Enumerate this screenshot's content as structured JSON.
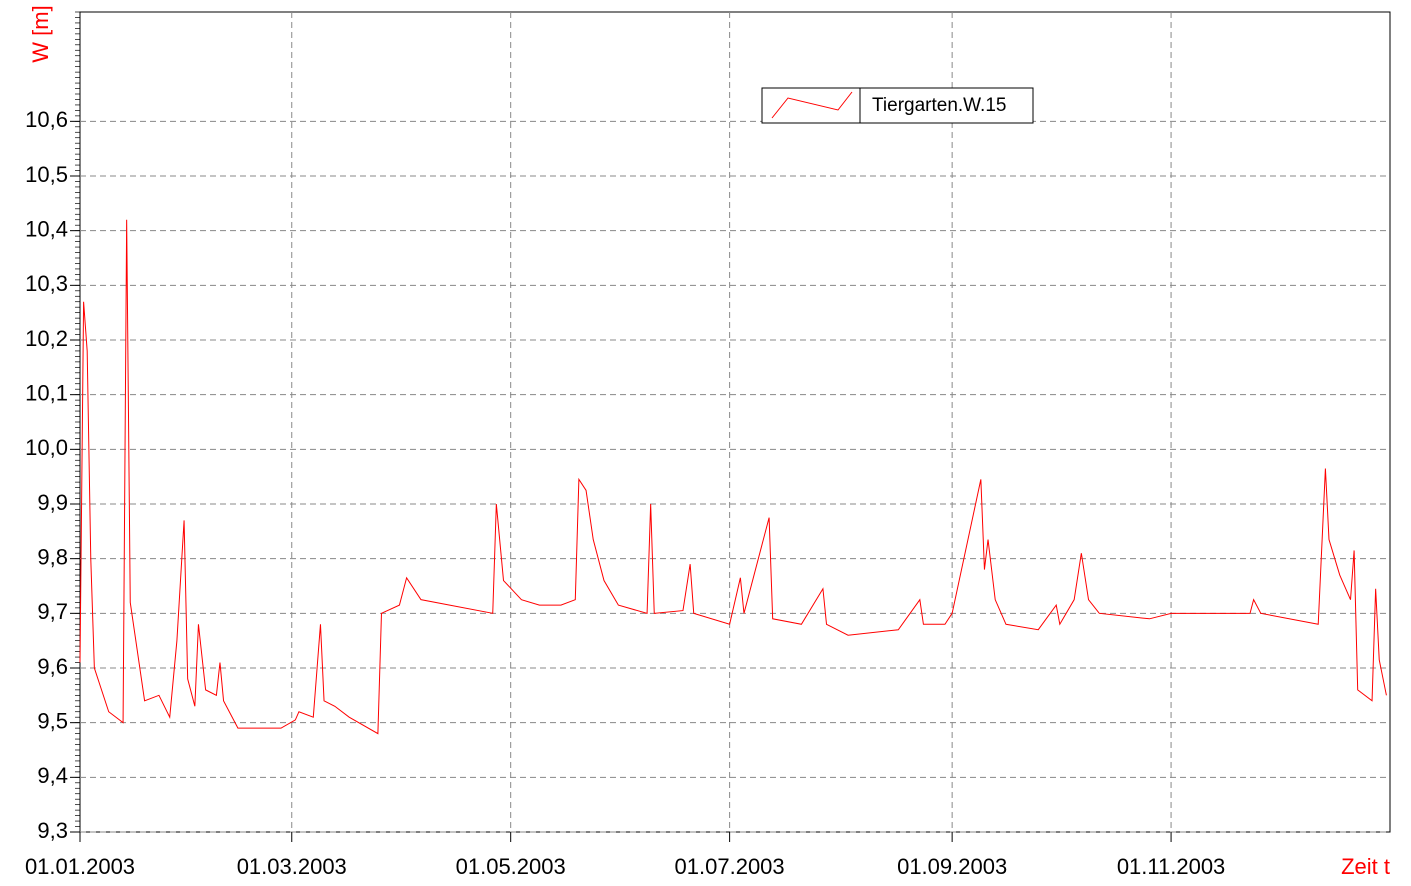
{
  "chart_data": {
    "type": "line",
    "x_label": "Zeit t",
    "y_label": "W [m]",
    "x": [
      "2003-01-01",
      "2003-01-02",
      "2003-01-03",
      "2003-01-04",
      "2003-01-05",
      "2003-01-09",
      "2003-01-13",
      "2003-01-14",
      "2003-01-15",
      "2003-01-19",
      "2003-01-23",
      "2003-01-26",
      "2003-01-28",
      "2003-01-30",
      "2003-01-31",
      "2003-02-02",
      "2003-02-03",
      "2003-02-05",
      "2003-02-08",
      "2003-02-09",
      "2003-02-10",
      "2003-02-14",
      "2003-02-26",
      "2003-03-02",
      "2003-03-03",
      "2003-03-07",
      "2003-03-09",
      "2003-03-10",
      "2003-03-13",
      "2003-03-17",
      "2003-03-25",
      "2003-03-26",
      "2003-03-31",
      "2003-04-02",
      "2003-04-06",
      "2003-04-14",
      "2003-04-26",
      "2003-04-27",
      "2003-04-29",
      "2003-05-04",
      "2003-05-09",
      "2003-05-15",
      "2003-05-19",
      "2003-05-20",
      "2003-05-22",
      "2003-05-24",
      "2003-05-27",
      "2003-05-31",
      "2003-06-08",
      "2003-06-09",
      "2003-06-10",
      "2003-06-18",
      "2003-06-20",
      "2003-06-21",
      "2003-07-01",
      "2003-07-04",
      "2003-07-05",
      "2003-07-12",
      "2003-07-13",
      "2003-07-21",
      "2003-07-27",
      "2003-07-28",
      "2003-08-03",
      "2003-08-17",
      "2003-08-23",
      "2003-08-24",
      "2003-08-30",
      "2003-09-01",
      "2003-09-09",
      "2003-09-10",
      "2003-09-11",
      "2003-09-13",
      "2003-09-16",
      "2003-09-25",
      "2003-09-30",
      "2003-10-01",
      "2003-10-05",
      "2003-10-07",
      "2003-10-09",
      "2003-10-12",
      "2003-10-26",
      "2003-11-01",
      "2003-11-09",
      "2003-11-23",
      "2003-11-24",
      "2003-11-26",
      "2003-12-12",
      "2003-12-14",
      "2003-12-15",
      "2003-12-18",
      "2003-12-21",
      "2003-12-22",
      "2003-12-23",
      "2003-12-27",
      "2003-12-28",
      "2003-12-29",
      "2003-12-31"
    ],
    "series": [
      {
        "name": "Tiergarten.W.15",
        "color": "#ff0000",
        "values": [
          9.61,
          10.27,
          10.18,
          9.8,
          9.6,
          9.52,
          9.5,
          10.42,
          9.72,
          9.54,
          9.55,
          9.51,
          9.65,
          9.87,
          9.58,
          9.53,
          9.68,
          9.56,
          9.55,
          9.61,
          9.54,
          9.49,
          9.49,
          9.505,
          9.52,
          9.51,
          9.68,
          9.54,
          9.53,
          9.51,
          9.48,
          9.7,
          9.715,
          9.765,
          9.725,
          9.715,
          9.7,
          9.9,
          9.76,
          9.725,
          9.715,
          9.715,
          9.725,
          9.945,
          9.925,
          9.835,
          9.76,
          9.715,
          9.7,
          9.9,
          9.7,
          9.705,
          9.79,
          9.7,
          9.68,
          9.765,
          9.7,
          9.875,
          9.69,
          9.68,
          9.745,
          9.68,
          9.66,
          9.67,
          9.725,
          9.68,
          9.68,
          9.7,
          9.945,
          9.78,
          9.835,
          9.725,
          9.68,
          9.67,
          9.715,
          9.68,
          9.725,
          9.81,
          9.725,
          9.7,
          9.69,
          9.7,
          9.7,
          9.7,
          9.725,
          9.7,
          9.68,
          9.965,
          9.835,
          9.77,
          9.725,
          9.815,
          9.56,
          9.54,
          9.745,
          9.615,
          9.55
        ]
      }
    ],
    "xlim": [
      "2003-01-01",
      "2004-01-01"
    ],
    "xticks": [
      {
        "value": "2003-01-01",
        "label": "01.01.2003"
      },
      {
        "value": "2003-03-01",
        "label": "01.03.2003"
      },
      {
        "value": "2003-05-01",
        "label": "01.05.2003"
      },
      {
        "value": "2003-07-01",
        "label": "01.07.2003"
      },
      {
        "value": "2003-09-01",
        "label": "01.09.2003"
      },
      {
        "value": "2003-11-01",
        "label": "01.11.2003"
      }
    ],
    "ylim": [
      9.3,
      10.8
    ],
    "yticks": [
      {
        "value": 9.3,
        "label": "9,3"
      },
      {
        "value": 9.4,
        "label": "9,4"
      },
      {
        "value": 9.5,
        "label": "9,5"
      },
      {
        "value": 9.6,
        "label": "9,6"
      },
      {
        "value": 9.7,
        "label": "9,7"
      },
      {
        "value": 9.8,
        "label": "9,8"
      },
      {
        "value": 9.9,
        "label": "9,9"
      },
      {
        "value": 10.0,
        "label": "10,0"
      },
      {
        "value": 10.1,
        "label": "10,1"
      },
      {
        "value": 10.2,
        "label": "10,2"
      },
      {
        "value": 10.3,
        "label": "10,3"
      },
      {
        "value": 10.4,
        "label": "10,4"
      },
      {
        "value": 10.5,
        "label": "10,5"
      },
      {
        "value": 10.6,
        "label": "10,6"
      }
    ],
    "grid": true,
    "legend": "top"
  }
}
